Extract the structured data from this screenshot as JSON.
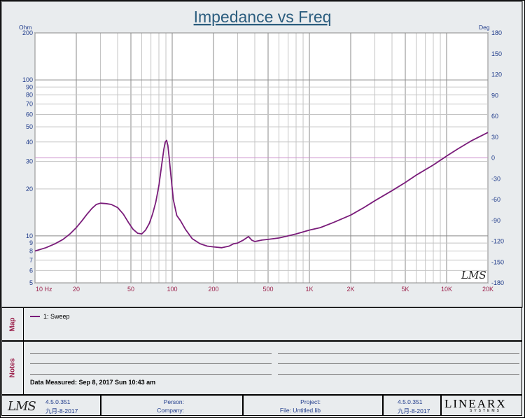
{
  "chart_data": {
    "type": "line",
    "title": "Impedance vs Freq",
    "left_unit": "Ohm",
    "right_unit": "Deg",
    "x_scale": "log",
    "xlim": [
      10,
      20000
    ],
    "y_scale": "log",
    "ylim": [
      5,
      200
    ],
    "y2lim": [
      -180,
      180
    ],
    "x_ticks": [
      {
        "v": 10,
        "label": "10  Hz"
      },
      {
        "v": 20,
        "label": "20"
      },
      {
        "v": 50,
        "label": "50"
      },
      {
        "v": 100,
        "label": "100"
      },
      {
        "v": 200,
        "label": "200"
      },
      {
        "v": 500,
        "label": "500"
      },
      {
        "v": 1000,
        "label": "1K"
      },
      {
        "v": 2000,
        "label": "2K"
      },
      {
        "v": 5000,
        "label": "5K"
      },
      {
        "v": 10000,
        "label": "10K"
      },
      {
        "v": 20000,
        "label": "20K"
      }
    ],
    "y_ticks": [
      5,
      6,
      7,
      8,
      9,
      10,
      20,
      30,
      40,
      50,
      60,
      70,
      80,
      90,
      100,
      200
    ],
    "y2_ticks": [
      -180,
      -150,
      -120,
      -90,
      -60,
      -30,
      0,
      30,
      60,
      90,
      120,
      150,
      180
    ],
    "reference_line_deg": 0,
    "grid": true,
    "series": [
      {
        "name": "1: Sweep",
        "color": "#7a1c7a",
        "x": [
          10,
          12,
          14,
          16,
          18,
          20,
          22,
          24,
          26,
          28,
          30,
          33,
          36,
          40,
          44,
          48,
          52,
          56,
          60,
          64,
          68,
          72,
          76,
          80,
          84,
          87,
          89,
          91,
          93,
          95,
          98,
          102,
          108,
          115,
          125,
          140,
          160,
          180,
          200,
          230,
          260,
          280,
          300,
          330,
          360,
          380,
          400,
          450,
          500,
          600,
          700,
          800,
          1000,
          1200,
          1500,
          2000,
          2500,
          3000,
          4000,
          5000,
          6000,
          8000,
          10000,
          12000,
          15000,
          20000
        ],
        "values": [
          8.0,
          8.4,
          8.9,
          9.5,
          10.3,
          11.3,
          12.5,
          13.8,
          15.0,
          15.9,
          16.2,
          16.1,
          15.9,
          15.2,
          13.8,
          12.2,
          11.0,
          10.4,
          10.3,
          10.9,
          12.0,
          13.8,
          16.5,
          21.0,
          29.0,
          36.0,
          40.0,
          41.0,
          38.0,
          32.0,
          24.0,
          17.0,
          13.5,
          12.5,
          11.0,
          9.6,
          8.9,
          8.6,
          8.5,
          8.4,
          8.6,
          8.9,
          9.0,
          9.4,
          9.9,
          9.4,
          9.2,
          9.4,
          9.5,
          9.7,
          10.0,
          10.3,
          10.9,
          11.3,
          12.2,
          13.6,
          15.2,
          16.8,
          19.5,
          22.0,
          24.5,
          28.5,
          32.5,
          36.0,
          40.5,
          46.0
        ]
      }
    ],
    "watermark": "LMS"
  },
  "map_panel": {
    "label": "Map",
    "legend": "1: Sweep"
  },
  "notes_panel": {
    "label": "Notes",
    "data_measured": "Data Measured: Sep 8, 2017 Sun 10:43 am"
  },
  "footer": {
    "logo": "LMS",
    "version_left": "4.5.0.351",
    "date_left": "九月-8-2017",
    "person_label": "Person:",
    "company_label": "Company:",
    "project_label": "Project:",
    "file_label": "File: Untitled.lib",
    "version_right": "4.5.0.351",
    "date_right": "九月-8-2017",
    "brand": "LINEARX",
    "brand_sub": "SYSTEMS"
  }
}
